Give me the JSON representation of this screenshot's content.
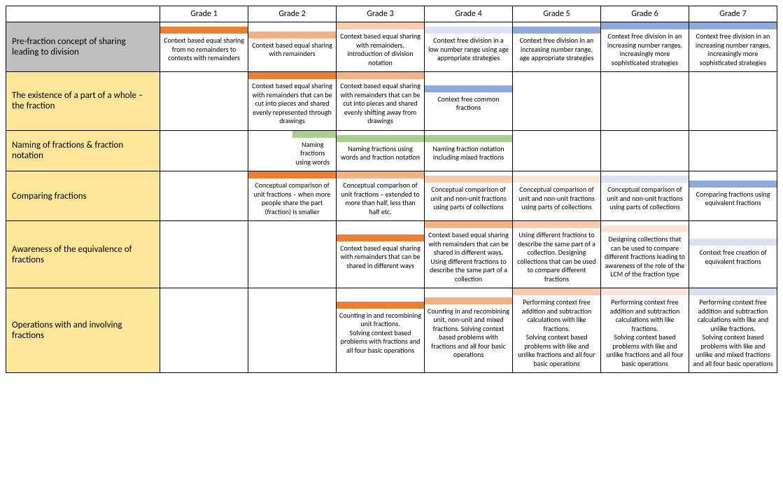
{
  "grades": [
    "Grade 1",
    "Grade 2",
    "Grade 3",
    "Grade 4",
    "Grade 5",
    "Grade 6",
    "Grade 7"
  ],
  "row_header_colors": {
    "r0": "#bfbfbf",
    "r1": "#ffe699",
    "r2": "#ffe699",
    "r3": "#ffe699",
    "r4": "#ffe699",
    "r5": "#ffe699"
  },
  "rows": [
    {
      "id": "r0",
      "label": "Pre-fraction concept of sharing leading to division",
      "cells": [
        {
          "swatch": "#ed7d31",
          "text": "Context based equal sharing from no remainders to contexts with remainders"
        },
        {
          "swatch": "#f4b183",
          "text": "Context based equal sharing with remainders"
        },
        {
          "swatch": "#f8cbad",
          "text": "Context based equal sharing with remainders, introduction of division notation"
        },
        {
          "swatch": "#d9e1f2",
          "text": "Context free division in a low number range using age appropriate strategies"
        },
        {
          "swatch": "#8ea9db",
          "text": "Context free division in an increasing number range, age appropriate strategies"
        },
        {
          "swatch": "#8ea9db",
          "text": "Context free division in an increasing number ranges, increasingly more sophisticated strategies"
        },
        {
          "swatch": "#8ea9db",
          "text": "Context free division in an increasing number ranges, increasingly more sophisticated strategies"
        }
      ]
    },
    {
      "id": "r1",
      "label": "The existence of a part of a whole – the fraction",
      "cells": [
        {
          "swatch": "",
          "text": ""
        },
        {
          "swatch": "#ed7d31",
          "text": "Context based equal sharing with remainders that can be cut into pieces and shared evenly represented through drawings"
        },
        {
          "swatch": "#f4b183",
          "text": "Context based equal sharing with remainders that can be cut into pieces and shared evenly shifting away from drawings"
        },
        {
          "swatch": "#8ea9db",
          "text": "Context free common fractions"
        },
        {
          "swatch": "",
          "text": ""
        },
        {
          "swatch": "",
          "text": ""
        },
        {
          "swatch": "",
          "text": ""
        }
      ]
    },
    {
      "id": "r2",
      "label": "Naming of fractions & fraction notation",
      "cells": [
        {
          "swatch": "",
          "text": ""
        },
        {
          "swatch": "#a9d08e",
          "text": "Naming fractions using words",
          "swatch_align": "right",
          "swatch_half": true,
          "text_align": "right"
        },
        {
          "swatch": "#a9d08e",
          "text": "Naming fractions using words and fraction notation"
        },
        {
          "swatch": "#a9d08e",
          "text": "Naming fraction notation including mixed fractions",
          "swatch_align": "left",
          "text_align": "left_wide"
        },
        {
          "swatch": "",
          "text": ""
        },
        {
          "swatch": "",
          "text": ""
        },
        {
          "swatch": "",
          "text": ""
        }
      ]
    },
    {
      "id": "r3",
      "label": "Comparing fractions",
      "cells": [
        {
          "swatch": "",
          "text": ""
        },
        {
          "swatch": "#ed7d31",
          "text": "Conceptual comparison of unit fractions – when more people share the part (fraction) is smaller"
        },
        {
          "swatch": "#f4b183",
          "text": "Conceptual comparison of unit fractions – extended to more than half, less than half etc."
        },
        {
          "swatch": "#f8cbad",
          "text": "Conceptual comparison of unit and non-unit fractions using parts of collections"
        },
        {
          "swatch": "#fce4d6",
          "text": "Conceptual comparison of unit and non-unit fractions using parts of collections"
        },
        {
          "swatch": "#d9e1f2",
          "text": "Conceptual comparison of unit and non-unit fractions using parts of collections"
        },
        {
          "swatch": "#8ea9db",
          "text": "Comparing fractions using equivalent fractions"
        }
      ]
    },
    {
      "id": "r4",
      "label": "Awareness of the equivalence of fractions",
      "cells": [
        {
          "swatch": "",
          "text": ""
        },
        {
          "swatch": "",
          "text": ""
        },
        {
          "swatch": "#ed7d31",
          "text": "Context based equal sharing with remainders that can be shared in different ways"
        },
        {
          "swatch": "#f4b183",
          "text": "Context based equal sharing with remainders that can be shared in different ways. Using different fractions to describe the same part of a collection"
        },
        {
          "swatch": "#f8cbad",
          "text": "Using different fractions to describe the same part of a collection. Designing collections that can be used to compare different fractions"
        },
        {
          "swatch": "#fce4d6",
          "text": "Designing collections that can be used to compare different fractions leading to awareness of the role of the LCM of the fraction type"
        },
        {
          "swatch": "#d9e1f2",
          "text": "Context free creation of equivalent fractions"
        }
      ]
    },
    {
      "id": "r5",
      "label": "Operations with and involving fractions",
      "cells": [
        {
          "swatch": "",
          "text": ""
        },
        {
          "swatch": "",
          "text": ""
        },
        {
          "swatch": "#ed7d31",
          "text": "Counting in and recombining unit fractions.\nSolving context based problems with fractions and all four basic operations"
        },
        {
          "swatch": "#f4b183",
          "text": "Counting in and recombining unit, non-unit and mixed fractions. Solving context based problems with fractions and all four basic operations"
        },
        {
          "swatch": "#f8cbad",
          "text": "Performing context free addition and subtraction calculations with like fractions.\nSolving context based problems with like and unlike  fractions and all four basic operations"
        },
        {
          "swatch": "#fce4d6",
          "text": "Performing context free addition and subtraction calculations with like fractions.\nSolving context based problems with like and unlike  fractions and all four basic operations"
        },
        {
          "swatch": "#d9e1f2",
          "text": "Performing context free addition and subtraction calculations with like and unlike fractions.\nSolving context based problems with like and unlike  and mixed fractions and all four basic operations"
        }
      ]
    }
  ]
}
